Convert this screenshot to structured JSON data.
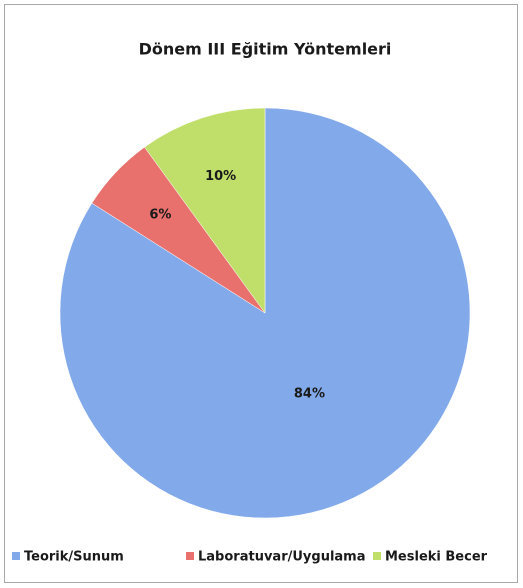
{
  "chart_data": {
    "type": "pie",
    "title": "Dönem III Eğitim Yöntemleri",
    "categories": [
      "Teorik/Sunum",
      "Laboratuvar/Uygulama",
      "Mesleki Becer"
    ],
    "values": [
      84,
      6,
      10
    ],
    "value_labels": [
      "84%",
      "6%",
      "10%"
    ],
    "colors": [
      "#82a9ea",
      "#e8716d",
      "#c0df6a"
    ],
    "legend": "bottom"
  }
}
